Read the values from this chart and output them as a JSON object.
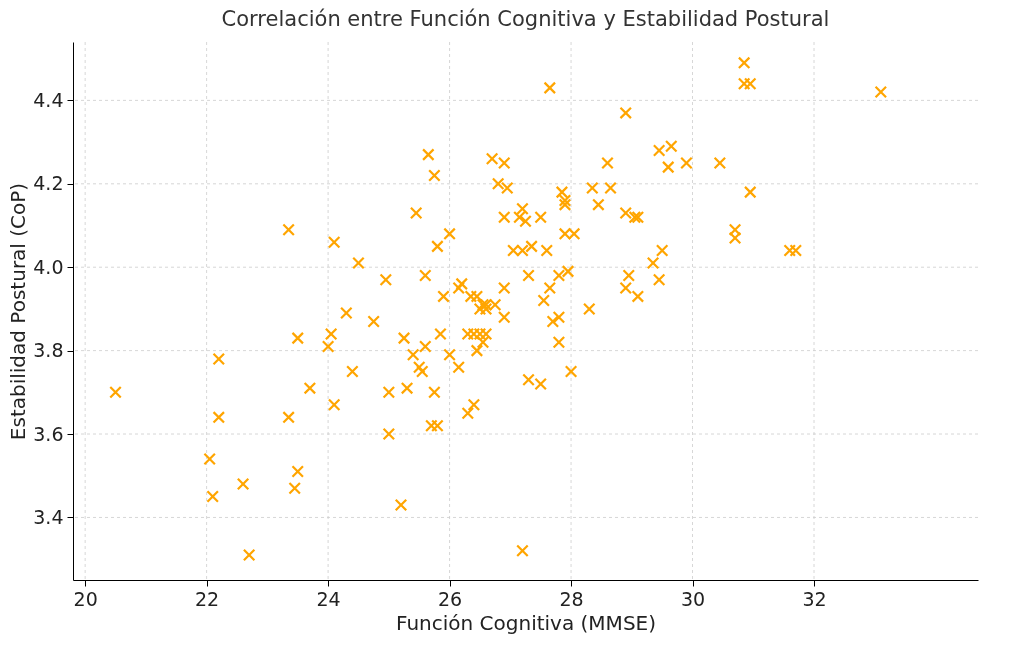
{
  "chart_data": {
    "type": "scatter",
    "title": "Correlación entre Función Cognitiva y Estabilidad Postural",
    "xlabel": "Función Cognitiva (MMSE)",
    "ylabel": "Estabilidad Postural (CoP)",
    "x": [
      20.5,
      22.05,
      22.1,
      22.2,
      22.2,
      22.6,
      22.7,
      23.35,
      23.35,
      23.5,
      23.5,
      23.45,
      23.7,
      24.0,
      24.05,
      24.1,
      24.1,
      24.3,
      24.4,
      24.5,
      24.75,
      24.95,
      25.0,
      25.0,
      25.25,
      25.2,
      25.3,
      25.4,
      25.5,
      25.55,
      25.45,
      25.6,
      25.65,
      25.6,
      25.7,
      25.75,
      25.75,
      25.8,
      25.8,
      25.85,
      25.9,
      26.0,
      26.0,
      26.15,
      26.15,
      26.2,
      26.3,
      26.3,
      26.35,
      26.4,
      26.4,
      26.45,
      26.45,
      26.5,
      26.5,
      26.55,
      26.55,
      26.6,
      26.6,
      26.6,
      26.7,
      26.75,
      26.8,
      26.9,
      26.9,
      26.9,
      26.9,
      26.95,
      27.05,
      27.15,
      27.2,
      27.2,
      27.25,
      27.2,
      27.3,
      27.3,
      27.35,
      27.5,
      27.5,
      27.55,
      27.6,
      27.65,
      27.65,
      27.7,
      27.8,
      27.8,
      27.8,
      27.85,
      27.9,
      27.9,
      27.9,
      27.95,
      28.0,
      28.05,
      28.3,
      28.35,
      28.45,
      28.6,
      28.65,
      28.9,
      28.95,
      28.9,
      29.05,
      29.1,
      29.1,
      28.9,
      29.35,
      29.45,
      29.5,
      29.45,
      29.6,
      29.65,
      29.9,
      30.45,
      30.7,
      30.7,
      30.85,
      30.85,
      30.95,
      30.95,
      31.6,
      31.7,
      33.1
    ],
    "series": [
      {
        "color": "#ffa500",
        "values": [
          3.7,
          3.54,
          3.45,
          3.78,
          3.64,
          3.48,
          3.31,
          4.09,
          3.64,
          3.83,
          3.51,
          3.47,
          3.71,
          3.81,
          3.84,
          4.06,
          3.67,
          3.89,
          3.75,
          4.01,
          3.87,
          3.97,
          3.7,
          3.6,
          3.83,
          3.43,
          3.71,
          3.79,
          3.76,
          3.75,
          4.13,
          3.98,
          4.27,
          3.81,
          3.62,
          3.7,
          4.22,
          3.62,
          4.05,
          3.84,
          3.93,
          4.08,
          3.79,
          3.76,
          3.95,
          3.96,
          3.65,
          3.84,
          3.93,
          3.84,
          3.67,
          3.93,
          3.8,
          3.9,
          3.84,
          3.91,
          3.82,
          3.9,
          3.91,
          3.84,
          4.26,
          3.91,
          4.2,
          4.25,
          4.12,
          3.88,
          3.95,
          4.19,
          4.04,
          4.12,
          4.04,
          4.14,
          4.11,
          3.32,
          3.73,
          3.98,
          4.05,
          4.12,
          3.72,
          3.92,
          4.04,
          4.43,
          3.95,
          3.87,
          3.88,
          3.82,
          3.98,
          4.18,
          4.16,
          4.08,
          4.15,
          3.99,
          3.75,
          4.08,
          3.9,
          4.19,
          4.15,
          4.25,
          4.19,
          4.13,
          3.98,
          3.95,
          4.12,
          4.12,
          3.93,
          4.37,
          4.01,
          3.97,
          4.04,
          4.28,
          4.24,
          4.29,
          4.25,
          4.25,
          4.09,
          4.07,
          4.49,
          4.44,
          4.44,
          4.18,
          4.04,
          4.04,
          4.42
        ]
      }
    ],
    "xlim": [
      19.8,
      34.7
    ],
    "xticks": [
      20,
      22,
      24,
      26,
      28,
      30,
      32
    ],
    "ylim": [
      3.25,
      4.54
    ],
    "yticks": [
      {
        "value": 3.4,
        "label": "3.4"
      },
      {
        "value": 3.6,
        "label": "3.6"
      },
      {
        "value": 3.8,
        "label": "3.8"
      },
      {
        "value": 4.0,
        "label": "4.0"
      },
      {
        "value": 4.2,
        "label": "4.2"
      },
      {
        "value": 4.4,
        "label": "4.4"
      }
    ],
    "grid": true,
    "marker": "cross"
  }
}
